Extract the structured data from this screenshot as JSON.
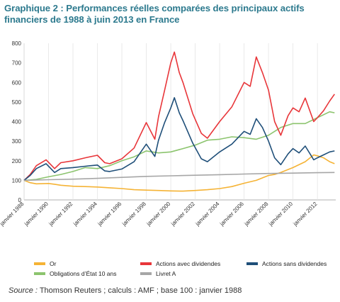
{
  "title": "Graphique 2 : Performances réelles comparées des principaux actifs financiers de 1988 à juin 2013 en France",
  "source_label": "Source :",
  "source_text": " Thomson Reuters ; calculs : AMF ; base 100 : janvier 1988",
  "chart_data": {
    "type": "line",
    "title": "Graphique 2 : Performances réelles comparées des principaux actifs financiers de 1988 à juin 2013 en France",
    "xlabel": "",
    "ylabel": "",
    "xlim": [
      1988,
      2013.5
    ],
    "ylim": [
      0,
      800
    ],
    "yticks": [
      0,
      100,
      200,
      300,
      400,
      500,
      600,
      700,
      800
    ],
    "xtick_labels": [
      "janvier 1988",
      "janvier 1990",
      "janvier 1992",
      "janvier 1994",
      "janvier 1996",
      "janvier 1998",
      "janvier 2000",
      "janvier 2002",
      "janvier 2004",
      "janvier 2006",
      "janvier 2008",
      "janvier 2010",
      "janvier 2012"
    ],
    "xtick_values": [
      1988,
      1990,
      1992,
      1994,
      1996,
      1998,
      2000,
      2002,
      2004,
      2006,
      2008,
      2010,
      2012
    ],
    "grid": "vertical",
    "legend": "bottom",
    "series": [
      {
        "name": "Or",
        "color": "#f5b335",
        "points": [
          [
            1988,
            100
          ],
          [
            1988.5,
            88
          ],
          [
            1989,
            82
          ],
          [
            1990,
            84
          ],
          [
            1990.5,
            80
          ],
          [
            1991,
            75
          ],
          [
            1992,
            70
          ],
          [
            1993,
            68
          ],
          [
            1994,
            66
          ],
          [
            1995,
            62
          ],
          [
            1996,
            58
          ],
          [
            1997,
            52
          ],
          [
            1998,
            50
          ],
          [
            1999,
            48
          ],
          [
            2000,
            46
          ],
          [
            2001,
            45
          ],
          [
            2002,
            48
          ],
          [
            2003,
            52
          ],
          [
            2004,
            58
          ],
          [
            2005,
            68
          ],
          [
            2006,
            85
          ],
          [
            2007,
            100
          ],
          [
            2008,
            125
          ],
          [
            2008.5,
            130
          ],
          [
            2009,
            140
          ],
          [
            2010,
            165
          ],
          [
            2011,
            195
          ],
          [
            2011.7,
            230
          ],
          [
            2012,
            225
          ],
          [
            2012.5,
            215
          ],
          [
            2013,
            195
          ],
          [
            2013.4,
            185
          ]
        ]
      },
      {
        "name": "Obligations d’État 10 ans",
        "color": "#8cc46e",
        "points": [
          [
            1988,
            100
          ],
          [
            1989,
            105
          ],
          [
            1990,
            118
          ],
          [
            1991,
            130
          ],
          [
            1992,
            145
          ],
          [
            1993,
            165
          ],
          [
            1994,
            160
          ],
          [
            1995,
            175
          ],
          [
            1996,
            200
          ],
          [
            1997,
            220
          ],
          [
            1998,
            250
          ],
          [
            1999,
            240
          ],
          [
            2000,
            245
          ],
          [
            2001,
            262
          ],
          [
            2002,
            280
          ],
          [
            2003,
            305
          ],
          [
            2004,
            310
          ],
          [
            2005,
            322
          ],
          [
            2006,
            318
          ],
          [
            2007,
            310
          ],
          [
            2008,
            330
          ],
          [
            2009,
            370
          ],
          [
            2010,
            390
          ],
          [
            2011,
            390
          ],
          [
            2012,
            420
          ],
          [
            2013,
            450
          ],
          [
            2013.4,
            445
          ]
        ]
      },
      {
        "name": "Actions avec dividendes",
        "color": "#e8363a",
        "points": [
          [
            1988,
            100
          ],
          [
            1988.5,
            130
          ],
          [
            1989,
            175
          ],
          [
            1989.8,
            205
          ],
          [
            1990.5,
            160
          ],
          [
            1991,
            190
          ],
          [
            1992,
            200
          ],
          [
            1993,
            215
          ],
          [
            1994,
            228
          ],
          [
            1994.6,
            190
          ],
          [
            1995,
            185
          ],
          [
            1996,
            210
          ],
          [
            1997,
            265
          ],
          [
            1998,
            395
          ],
          [
            1998.7,
            310
          ],
          [
            1999,
            425
          ],
          [
            1999.5,
            560
          ],
          [
            2000,
            700
          ],
          [
            2000.3,
            755
          ],
          [
            2000.7,
            650
          ],
          [
            2001,
            600
          ],
          [
            2001.8,
            440
          ],
          [
            2002.5,
            340
          ],
          [
            2003,
            315
          ],
          [
            2004,
            400
          ],
          [
            2005,
            475
          ],
          [
            2006,
            600
          ],
          [
            2006.5,
            580
          ],
          [
            2007,
            730
          ],
          [
            2007.5,
            650
          ],
          [
            2008,
            560
          ],
          [
            2008.5,
            400
          ],
          [
            2009,
            330
          ],
          [
            2009.6,
            430
          ],
          [
            2010,
            470
          ],
          [
            2010.5,
            450
          ],
          [
            2011,
            520
          ],
          [
            2011.7,
            400
          ],
          [
            2012,
            420
          ],
          [
            2012.5,
            455
          ],
          [
            2013,
            505
          ],
          [
            2013.4,
            540
          ]
        ]
      },
      {
        "name": "Actions sans dividendes",
        "color": "#1f4f79",
        "points": [
          [
            1988,
            100
          ],
          [
            1988.5,
            125
          ],
          [
            1989,
            160
          ],
          [
            1989.8,
            185
          ],
          [
            1990.5,
            140
          ],
          [
            1991,
            160
          ],
          [
            1992,
            165
          ],
          [
            1993,
            172
          ],
          [
            1994,
            178
          ],
          [
            1994.6,
            148
          ],
          [
            1995,
            145
          ],
          [
            1996,
            158
          ],
          [
            1997,
            195
          ],
          [
            1998,
            285
          ],
          [
            1998.7,
            222
          ],
          [
            1999,
            305
          ],
          [
            1999.5,
            395
          ],
          [
            2000,
            470
          ],
          [
            2000.3,
            522
          ],
          [
            2000.7,
            445
          ],
          [
            2001,
            405
          ],
          [
            2001.8,
            290
          ],
          [
            2002.5,
            210
          ],
          [
            2003,
            195
          ],
          [
            2004,
            245
          ],
          [
            2005,
            285
          ],
          [
            2006,
            350
          ],
          [
            2006.5,
            335
          ],
          [
            2007,
            415
          ],
          [
            2007.5,
            370
          ],
          [
            2008,
            300
          ],
          [
            2008.5,
            215
          ],
          [
            2009,
            180
          ],
          [
            2009.6,
            235
          ],
          [
            2010,
            262
          ],
          [
            2010.5,
            240
          ],
          [
            2011,
            275
          ],
          [
            2011.7,
            205
          ],
          [
            2012,
            215
          ],
          [
            2012.5,
            230
          ],
          [
            2013,
            245
          ],
          [
            2013.4,
            250
          ]
        ]
      },
      {
        "name": "Livret A",
        "color": "#a6a6a6",
        "points": [
          [
            1988,
            100
          ],
          [
            1990,
            103
          ],
          [
            1992,
            106
          ],
          [
            1994,
            110
          ],
          [
            1996,
            115
          ],
          [
            1998,
            120
          ],
          [
            2000,
            123
          ],
          [
            2002,
            126
          ],
          [
            2004,
            129
          ],
          [
            2006,
            132
          ],
          [
            2008,
            135
          ],
          [
            2010,
            137
          ],
          [
            2012,
            139
          ],
          [
            2013.4,
            140
          ]
        ]
      }
    ]
  }
}
